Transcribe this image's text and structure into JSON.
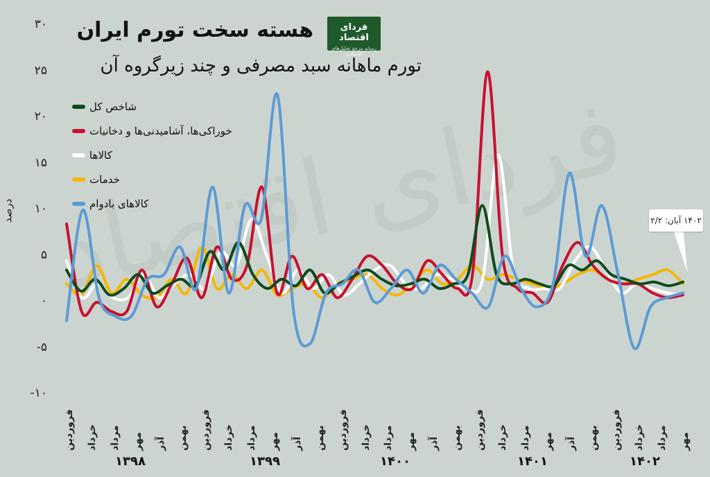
{
  "title": "هسته سخت تورم ایران",
  "subtitle": "تورم ماهانه سبد مصرفی و چند زیرگروه آن",
  "logo": {
    "name": "فردای اقتصاد",
    "tagline": "رسانه مرجع تحلیل‌های اقتصادی"
  },
  "colors": {
    "background": "#ccd4d0",
    "headline": "#0e4a1a",
    "food": "#c8102e",
    "goods": "#ffffff",
    "services": "#f5b800",
    "durables": "#5b9bd5"
  },
  "callout": "۱۴۰۲ آبان: ۲/۲",
  "chart_data": {
    "type": "line",
    "ylabel": "درصد",
    "ylim": [
      -10,
      30
    ],
    "yticks": [
      "-۱۰",
      "-۵",
      "۰",
      "۵",
      "۱۰",
      "۱۵",
      "۲۰",
      "۲۵",
      "۳۰"
    ],
    "month_labels": [
      "فروردین",
      "خرداد",
      "مرداد",
      "مهر",
      "آذر",
      "بهمن",
      "فروردین",
      "خرداد",
      "مرداد",
      "مهر",
      "آذر",
      "بهمن",
      "فروردین",
      "خرداد",
      "مرداد",
      "مهر",
      "آذر",
      "بهمن",
      "فروردین",
      "خرداد",
      "مرداد",
      "مهر",
      "آذر",
      "بهمن",
      "فروردین",
      "خرداد",
      "مرداد",
      "مهر"
    ],
    "years": [
      "۱۳۹۸",
      "۱۳۹۹",
      "۱۴۰۰",
      "۱۴۰۱",
      "۱۴۰۲"
    ],
    "series": [
      {
        "name": "شاخص کل",
        "color": "#0e4a1a",
        "values": [
          3.5,
          1.2,
          2.5,
          0.8,
          1.5,
          3.0,
          1.0,
          1.8,
          2.5,
          1.8,
          5.5,
          3.5,
          6.5,
          3.0,
          1.5,
          2.5,
          1.8,
          3.5,
          1.0,
          2.0,
          2.8,
          3.5,
          2.5,
          1.8,
          2.0,
          2.5,
          1.5,
          2.0,
          3.0,
          10.5,
          3.0,
          2.0,
          2.5,
          2.0,
          1.8,
          4.0,
          3.5,
          4.5,
          3.0,
          2.5,
          2.0,
          2.2,
          1.8,
          2.2
        ]
      },
      {
        "name": "خوراکی‌ها، آشامیدنی‌ها و دخانیات",
        "color": "#c8102e",
        "values": [
          8.5,
          -1.0,
          0.0,
          -1.0,
          -1.0,
          3.5,
          -0.5,
          2.0,
          4.8,
          0.5,
          6.0,
          2.5,
          4.0,
          12.5,
          1.0,
          5.0,
          1.5,
          3.0,
          0.5,
          2.5,
          5.0,
          4.0,
          2.0,
          1.5,
          4.5,
          3.0,
          1.5,
          3.0,
          25.0,
          5.0,
          1.5,
          1.0,
          0.0,
          4.0,
          6.5,
          4.0,
          2.5,
          2.0,
          2.0,
          1.0,
          0.5,
          0.8
        ]
      },
      {
        "name": "کالاها",
        "color": "#ffffff",
        "values": [
          4.5,
          0.5,
          2.0,
          0.5,
          0.5,
          3.0,
          0.5,
          2.0,
          3.0,
          1.5,
          5.5,
          4.0,
          9.0,
          5.0,
          1.0,
          3.5,
          1.5,
          3.0,
          0.8,
          2.0,
          3.5,
          4.0,
          2.0,
          1.5,
          3.0,
          2.5,
          1.5,
          2.5,
          16.0,
          3.5,
          1.5,
          1.5,
          1.5,
          4.5,
          6.0,
          3.5,
          1.0,
          2.0,
          1.5,
          1.0,
          0.8
        ]
      },
      {
        "name": "خدمات",
        "color": "#f5b800",
        "values": [
          2.0,
          0.8,
          4.0,
          1.0,
          2.5,
          0.8,
          0.5,
          2.5,
          1.0,
          6.0,
          1.5,
          3.0,
          1.5,
          3.5,
          0.8,
          1.5,
          2.0,
          0.5,
          2.0,
          2.5,
          3.0,
          1.5,
          0.8,
          2.0,
          3.5,
          2.0,
          2.5,
          4.0,
          2.5,
          3.0,
          2.5,
          2.0,
          1.5,
          2.0,
          3.0,
          3.5,
          2.5,
          2.0,
          2.5,
          3.0,
          3.5,
          2.0
        ]
      },
      {
        "name": "کالاهای بادوام",
        "color": "#5b9bd5",
        "values": [
          -2.0,
          10.0,
          0.5,
          -1.5,
          -1.5,
          2.5,
          3.0,
          6.0,
          1.5,
          12.5,
          1.0,
          10.5,
          9.0,
          22.5,
          -1.0,
          -4.5,
          1.0,
          2.0,
          3.5,
          0.0,
          1.5,
          3.5,
          1.0,
          4.0,
          2.5,
          1.0,
          -0.5,
          5.0,
          1.5,
          -0.5,
          2.0,
          14.0,
          5.0,
          10.5,
          3.0,
          -5.0,
          -0.5,
          0.5,
          1.0
        ]
      }
    ]
  }
}
